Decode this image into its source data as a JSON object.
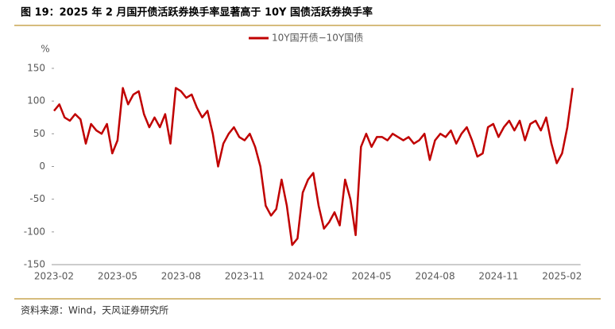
{
  "chart_data": {
    "type": "line",
    "title": "图 19：2025 年 2 月国开债活跃券换手率显著高于 10Y 国债活跃券换手率",
    "source": "资料来源：Wind，天风证券研究所",
    "y_label": "%",
    "categories": [
      "2023-02",
      null,
      null,
      null,
      null,
      null,
      null,
      null,
      null,
      null,
      null,
      null,
      "2023-05",
      null,
      null,
      null,
      null,
      null,
      null,
      null,
      null,
      null,
      null,
      null,
      "2023-08",
      null,
      null,
      null,
      null,
      null,
      null,
      null,
      null,
      null,
      null,
      null,
      "2023-11",
      null,
      null,
      null,
      null,
      null,
      null,
      null,
      null,
      null,
      null,
      null,
      "2024-02",
      null,
      null,
      null,
      null,
      null,
      null,
      null,
      null,
      null,
      null,
      null,
      "2024-05",
      null,
      null,
      null,
      null,
      null,
      null,
      null,
      null,
      null,
      null,
      null,
      "2024-08",
      null,
      null,
      null,
      null,
      null,
      null,
      null,
      null,
      null,
      null,
      null,
      "2024-11",
      null,
      null,
      null,
      null,
      null,
      null,
      null,
      null,
      null,
      null,
      null,
      "2025-02",
      null,
      null
    ],
    "series": [
      {
        "name": "10Y国开债−10Y国债",
        "color": "#c00000",
        "values": [
          85,
          95,
          75,
          70,
          80,
          72,
          35,
          65,
          55,
          50,
          65,
          20,
          40,
          120,
          95,
          110,
          115,
          80,
          60,
          75,
          60,
          80,
          35,
          120,
          115,
          105,
          110,
          90,
          75,
          85,
          50,
          0,
          35,
          50,
          60,
          45,
          40,
          50,
          30,
          0,
          -60,
          -75,
          -65,
          -20,
          -60,
          -120,
          -110,
          -40,
          -20,
          -10,
          -60,
          -95,
          -85,
          -70,
          -90,
          -20,
          -50,
          -105,
          30,
          50,
          30,
          45,
          45,
          40,
          50,
          45,
          40,
          45,
          35,
          40,
          50,
          10,
          40,
          50,
          45,
          55,
          35,
          50,
          60,
          40,
          15,
          20,
          60,
          65,
          45,
          60,
          70,
          55,
          70,
          40,
          65,
          70,
          55,
          75,
          35,
          5,
          20,
          60,
          120
        ]
      }
    ],
    "ylim": [
      -150,
      150
    ],
    "yticks": [
      -150,
      -100,
      -50,
      0,
      50,
      100,
      150
    ],
    "grid": false,
    "legend": "top"
  }
}
